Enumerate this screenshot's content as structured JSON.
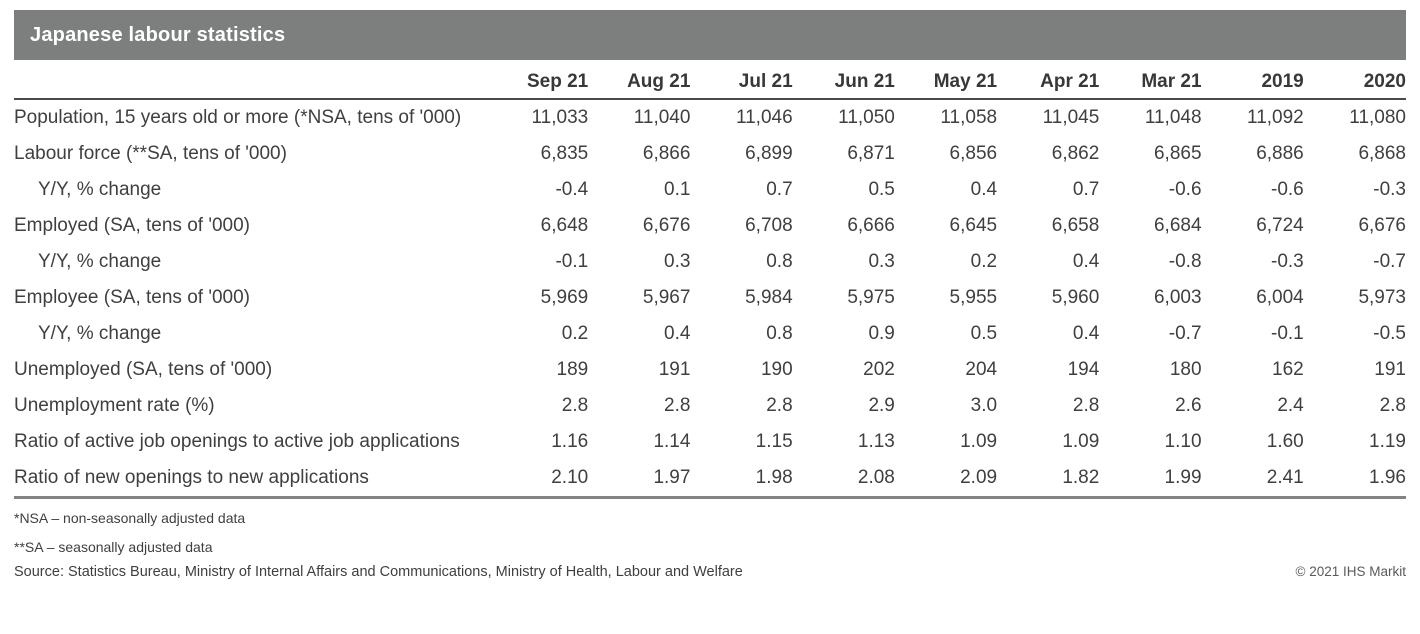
{
  "title_bar": {
    "title": "Japanese labour statistics",
    "bg_color": "#7d7f7e",
    "text_color": "#ffffff"
  },
  "table": {
    "columns": [
      "Sep 21",
      "Aug 21",
      "Jul 21",
      "Jun 21",
      "May 21",
      "Apr 21",
      "Mar 21",
      "2019",
      "2020"
    ],
    "rows": [
      {
        "label": "Population, 15 years old or more (*NSA, tens of '000)",
        "indent": false,
        "values": [
          "11,033",
          "11,040",
          "11,046",
          "11,050",
          "11,058",
          "11,045",
          "11,048",
          "11,092",
          "11,080"
        ]
      },
      {
        "label": "Labour force (**SA, tens of '000)",
        "indent": false,
        "values": [
          "6,835",
          "6,866",
          "6,899",
          "6,871",
          "6,856",
          "6,862",
          "6,865",
          "6,886",
          "6,868"
        ]
      },
      {
        "label": "Y/Y, % change",
        "indent": true,
        "values": [
          "-0.4",
          "0.1",
          "0.7",
          "0.5",
          "0.4",
          "0.7",
          "-0.6",
          "-0.6",
          "-0.3"
        ]
      },
      {
        "label": "Employed (SA, tens of '000)",
        "indent": false,
        "values": [
          "6,648",
          "6,676",
          "6,708",
          "6,666",
          "6,645",
          "6,658",
          "6,684",
          "6,724",
          "6,676"
        ]
      },
      {
        "label": "Y/Y, % change",
        "indent": true,
        "values": [
          "-0.1",
          "0.3",
          "0.8",
          "0.3",
          "0.2",
          "0.4",
          "-0.8",
          "-0.3",
          "-0.7"
        ]
      },
      {
        "label": "Employee (SA, tens of '000)",
        "indent": false,
        "values": [
          "5,969",
          "5,967",
          "5,984",
          "5,975",
          "5,955",
          "5,960",
          "6,003",
          "6,004",
          "5,973"
        ]
      },
      {
        "label": "Y/Y, % change",
        "indent": true,
        "values": [
          "0.2",
          "0.4",
          "0.8",
          "0.9",
          "0.5",
          "0.4",
          "-0.7",
          "-0.1",
          "-0.5"
        ]
      },
      {
        "label": "Unemployed (SA, tens of '000)",
        "indent": false,
        "values": [
          "189",
          "191",
          "190",
          "202",
          "204",
          "194",
          "180",
          "162",
          "191"
        ]
      },
      {
        "label": "Unemployment rate (%)",
        "indent": false,
        "values": [
          "2.8",
          "2.8",
          "2.8",
          "2.9",
          "3.0",
          "2.8",
          "2.6",
          "2.4",
          "2.8"
        ]
      },
      {
        "label": "Ratio of active job openings to active job applications",
        "indent": false,
        "values": [
          "1.16",
          "1.14",
          "1.15",
          "1.13",
          "1.09",
          "1.09",
          "1.10",
          "1.60",
          "1.19"
        ]
      },
      {
        "label": "Ratio of new openings to new applications",
        "indent": false,
        "values": [
          "2.10",
          "1.97",
          "1.98",
          "2.08",
          "2.09",
          "1.82",
          "1.99",
          "2.41",
          "1.96"
        ]
      }
    ]
  },
  "footnotes": [
    "*NSA – non-seasonally adjusted data",
    "**SA – seasonally adjusted data"
  ],
  "source": "Source: Statistics Bureau, Ministry of Internal Affairs and Communications, Ministry of Health, Labour and Welfare",
  "copyright": "© 2021 IHS Markit"
}
